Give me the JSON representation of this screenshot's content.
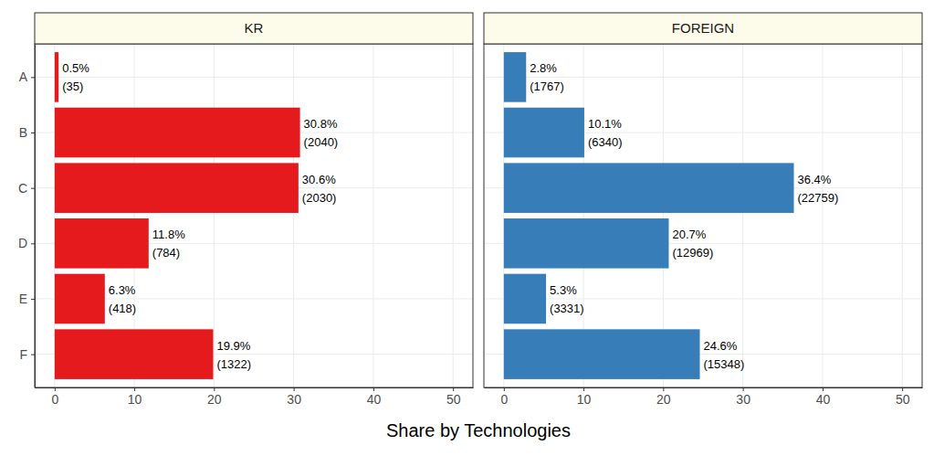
{
  "chart_data": {
    "type": "bar",
    "orientation": "horizontal",
    "xlabel": "Share by Technologies",
    "categories": [
      "A",
      "B",
      "C",
      "D",
      "E",
      "F"
    ],
    "series": [
      {
        "name": "KR",
        "color": "#e41a1c",
        "values": [
          0.5,
          30.8,
          30.6,
          11.8,
          6.3,
          19.9
        ],
        "value_labels": [
          "0.5%",
          "30.8%",
          "30.6%",
          "11.8%",
          "6.3%",
          "19.9%"
        ],
        "counts": [
          35,
          2040,
          2030,
          784,
          418,
          1322
        ],
        "count_labels": [
          "(35)",
          "(2040)",
          "(2030)",
          "(784)",
          "(418)",
          "(1322)"
        ]
      },
      {
        "name": "FOREIGN",
        "color": "#377eb8",
        "values": [
          2.8,
          10.1,
          36.4,
          20.7,
          5.3,
          24.6
        ],
        "value_labels": [
          "2.8%",
          "10.1%",
          "36.4%",
          "20.7%",
          "5.3%",
          "24.6%"
        ],
        "counts": [
          1767,
          6340,
          22759,
          12969,
          3331,
          15348
        ],
        "count_labels": [
          "(1767)",
          "(6340)",
          "(22759)",
          "(12969)",
          "(3331)",
          "(15348)"
        ]
      }
    ],
    "xlim": [
      -2.5,
      52.5
    ],
    "xticks": [
      0,
      10,
      20,
      30,
      40,
      50
    ],
    "grid": true,
    "data_labels": true
  }
}
